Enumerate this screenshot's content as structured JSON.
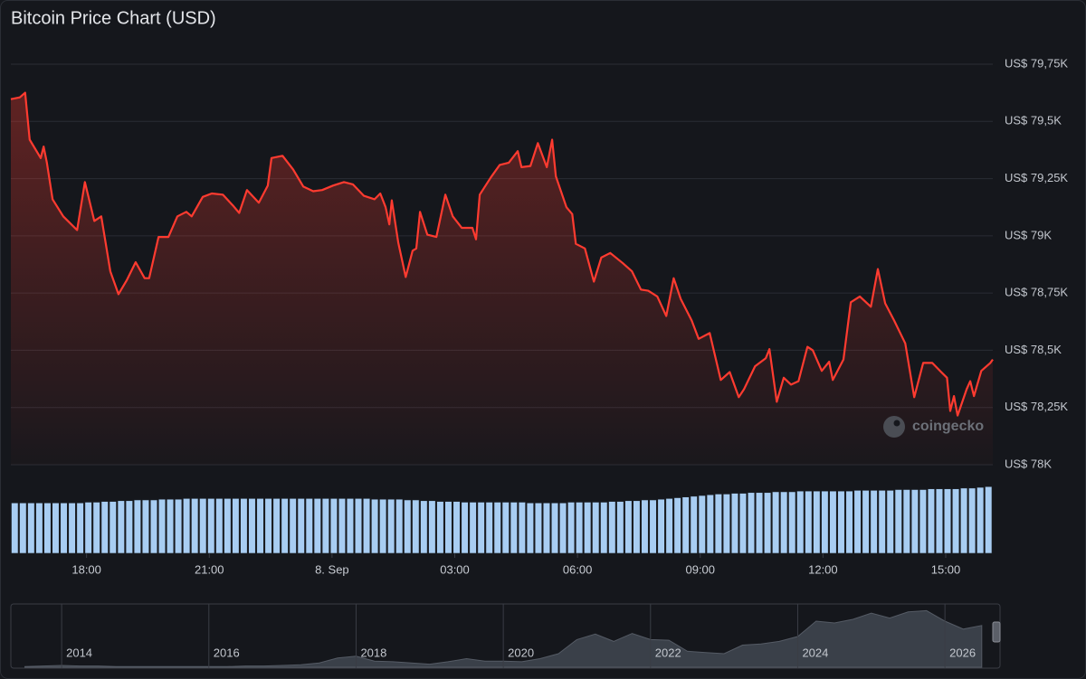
{
  "chart_data": {
    "type": "line",
    "title": "Bitcoin Price Chart (USD)",
    "color": "#ff3b30",
    "grid": true,
    "x": [
      -7.85,
      -7.63,
      -7.5,
      -7.39,
      -7.12,
      -7.05,
      -6.97,
      -6.83,
      -6.57,
      -6.23,
      -6.04,
      -5.81,
      -5.64,
      -5.42,
      -5.22,
      -5.02,
      -4.8,
      -4.58,
      -4.47,
      -4.24,
      -4.0,
      -3.78,
      -3.56,
      -3.43,
      -3.16,
      -2.94,
      -2.67,
      -2.41,
      -2.27,
      -2.08,
      -1.79,
      -1.57,
      -1.48,
      -1.21,
      -0.95,
      -0.7,
      -0.46,
      -0.24,
      0.03,
      0.29,
      0.51,
      0.78,
      1.04,
      1.18,
      1.31,
      1.4,
      1.46,
      1.62,
      1.8,
      1.97,
      2.06,
      2.15,
      2.33,
      2.55,
      2.77,
      2.95,
      3.17,
      3.43,
      3.52,
      3.61,
      3.88,
      4.1,
      4.32,
      4.54,
      4.63,
      4.85,
      5.03,
      5.25,
      5.38,
      5.47,
      5.73,
      5.87,
      5.96,
      6.18,
      6.4,
      6.58,
      6.8,
      7.11,
      7.33,
      7.55,
      7.73,
      7.95,
      8.17,
      8.35,
      8.52,
      8.79,
      8.96,
      9.23,
      9.5,
      9.72,
      9.94,
      10.07,
      10.34,
      10.6,
      10.69,
      10.87,
      11.04,
      11.22,
      11.4,
      11.62,
      11.75,
      11.97,
      12.15,
      12.24,
      12.5,
      12.68,
      12.9,
      13.17,
      13.34,
      13.52,
      13.74,
      14.01,
      14.23,
      14.45,
      14.67,
      14.89,
      15.03,
      15.11,
      15.2,
      15.29,
      15.51,
      15.6,
      15.69,
      15.87,
      16.09,
      16.15
    ],
    "values": [
      79597,
      79605,
      79625,
      79420,
      79340,
      79390,
      79320,
      79160,
      79085,
      79025,
      79235,
      79065,
      79085,
      78845,
      78745,
      78805,
      78885,
      78815,
      78815,
      78995,
      78995,
      79085,
      79105,
      79085,
      79170,
      79185,
      79180,
      79130,
      79100,
      79200,
      79145,
      79220,
      79340,
      79350,
      79290,
      79215,
      79195,
      79200,
      79220,
      79235,
      79225,
      79175,
      79160,
      79185,
      79125,
      79050,
      79155,
      78970,
      78820,
      78935,
      78945,
      79105,
      79005,
      78995,
      79180,
      79085,
      79035,
      79035,
      78985,
      79180,
      79255,
      79310,
      79320,
      79370,
      79300,
      79305,
      79405,
      79300,
      79420,
      79260,
      79125,
      79095,
      78965,
      78945,
      78800,
      78905,
      78925,
      78880,
      78845,
      78765,
      78760,
      78735,
      78650,
      78815,
      78725,
      78630,
      78550,
      78575,
      78370,
      78405,
      78295,
      78330,
      78430,
      78465,
      78505,
      78275,
      78380,
      78350,
      78365,
      78515,
      78500,
      78410,
      78450,
      78370,
      78460,
      78710,
      78735,
      78690,
      78855,
      78705,
      78630,
      78530,
      78295,
      78445,
      78445,
      78405,
      78380,
      78235,
      78300,
      78215,
      78330,
      78365,
      78300,
      78410,
      78445,
      78460
    ],
    "xlim": [
      -7.85,
      16.15
    ],
    "xticks": [
      {
        "value": -6,
        "label": "18:00"
      },
      {
        "value": -3,
        "label": "21:00"
      },
      {
        "value": 0,
        "label": "8. Sep"
      },
      {
        "value": 3,
        "label": "03:00"
      },
      {
        "value": 6,
        "label": "06:00"
      },
      {
        "value": 9,
        "label": "09:00"
      },
      {
        "value": 12,
        "label": "12:00"
      },
      {
        "value": 15,
        "label": "15:00"
      }
    ],
    "ylim": [
      78000,
      79750
    ],
    "yticks": [
      {
        "value": 78000,
        "label": "US$ 78K"
      },
      {
        "value": 78250,
        "label": "US$ 78,25K"
      },
      {
        "value": 78500,
        "label": "US$ 78,5K"
      },
      {
        "value": 78750,
        "label": "US$ 78,75K"
      },
      {
        "value": 79000,
        "label": "US$ 79K"
      },
      {
        "value": 79250,
        "label": "US$ 79,25K"
      },
      {
        "value": 79500,
        "label": "US$ 79,5K"
      },
      {
        "value": 79750,
        "label": "US$ 79,75K"
      }
    ],
    "volume": {
      "color": "#a8cdf2",
      "ylim": [
        0,
        100
      ],
      "values": [
        68,
        68,
        68,
        68,
        68,
        68,
        68,
        68,
        68,
        69,
        69,
        70,
        70,
        71,
        71,
        72,
        72,
        72,
        73,
        73,
        73,
        74,
        74,
        74,
        74,
        74,
        74,
        74,
        74,
        74,
        74,
        74,
        74,
        74,
        74,
        74,
        74,
        74,
        74,
        74,
        74,
        74,
        74,
        74,
        73,
        73,
        73,
        73,
        72,
        72,
        71,
        71,
        70,
        70,
        70,
        69,
        69,
        69,
        69,
        69,
        69,
        69,
        69,
        68,
        68,
        68,
        68,
        68,
        69,
        69,
        69,
        69,
        69,
        70,
        70,
        71,
        71,
        72,
        72,
        73,
        74,
        75,
        76,
        77,
        78,
        79,
        80,
        80,
        81,
        81,
        82,
        82,
        82,
        83,
        83,
        83,
        84,
        84,
        84,
        84,
        84,
        84,
        84,
        85,
        85,
        85,
        85,
        85,
        86,
        86,
        86,
        86,
        87,
        87,
        87,
        87,
        88,
        88,
        89,
        90
      ]
    },
    "navigator": {
      "xlim": [
        2013.31,
        2026.65
      ],
      "xticks": [
        2014,
        2016,
        2018,
        2020,
        2022,
        2024,
        2026
      ],
      "ylim": [
        0,
        100
      ],
      "x": [
        2013.5,
        2013.75,
        2014,
        2014.25,
        2014.5,
        2014.75,
        2015,
        2015.25,
        2015.5,
        2015.75,
        2016,
        2016.25,
        2016.5,
        2016.75,
        2017,
        2017.25,
        2017.5,
        2017.75,
        2018,
        2018.25,
        2018.5,
        2018.75,
        2019,
        2019.25,
        2019.5,
        2019.75,
        2020,
        2020.25,
        2020.5,
        2020.75,
        2021,
        2021.25,
        2021.5,
        2021.75,
        2022,
        2022.25,
        2022.5,
        2022.75,
        2023,
        2023.25,
        2023.5,
        2023.75,
        2024,
        2024.25,
        2024.5,
        2024.75,
        2025,
        2025.25,
        2025.5,
        2025.75,
        2026,
        2026.25,
        2026.5
      ],
      "values": [
        1,
        2,
        3,
        2,
        2,
        1,
        1,
        1,
        1,
        1,
        1,
        1,
        2,
        2,
        3,
        4,
        7,
        15,
        18,
        10,
        9,
        7,
        5,
        9,
        14,
        10,
        10,
        9,
        14,
        22,
        45,
        54,
        42,
        55,
        45,
        44,
        26,
        24,
        22,
        36,
        38,
        42,
        50,
        75,
        72,
        78,
        88,
        80,
        90,
        92,
        75,
        62,
        68
      ]
    },
    "watermark": "coingecko"
  }
}
